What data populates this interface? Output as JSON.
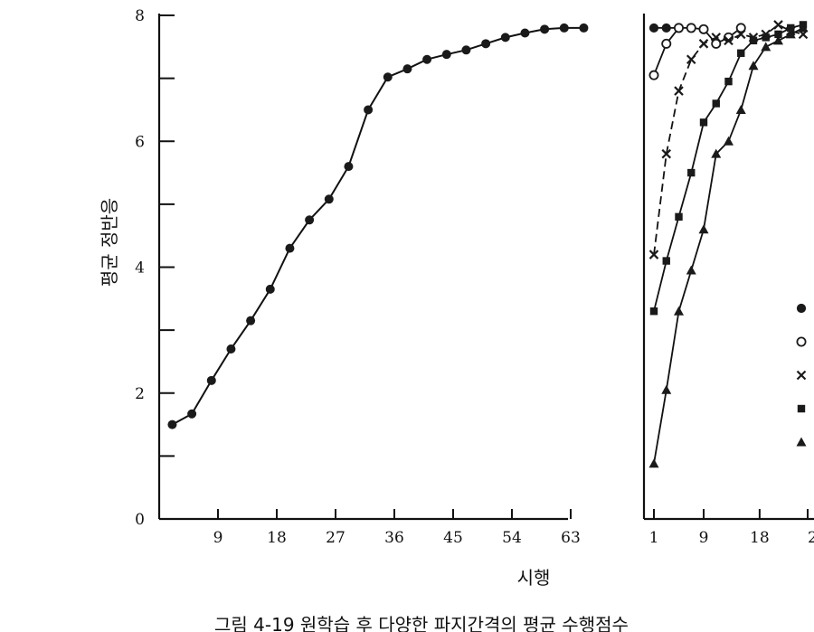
{
  "chart_data": [
    {
      "type": "line",
      "ylabel": "평균 정반응",
      "xlabel": "시행",
      "xticks": [
        9,
        18,
        27,
        36,
        45,
        54,
        63
      ],
      "yticks": [
        0,
        2,
        4,
        6,
        8
      ],
      "xlim": [
        0,
        63
      ],
      "ylim": [
        0,
        8
      ],
      "series": [
        {
          "x": [
            2,
            5,
            8,
            11,
            14,
            17,
            20,
            23,
            26,
            29,
            32,
            35,
            38,
            41,
            44,
            47,
            50,
            53,
            56,
            59,
            62,
            65
          ],
          "values": [
            1.5,
            1.67,
            2.2,
            2.7,
            3.15,
            3.65,
            4.3,
            4.75,
            5.08,
            5.6,
            6.5,
            7.02,
            7.15,
            7.3,
            7.38,
            7.45,
            7.55,
            7.65,
            7.72,
            7.78,
            7.8,
            7.8
          ]
        }
      ]
    },
    {
      "type": "line",
      "xticks": [
        1,
        9,
        18
      ],
      "partial_tick": "2",
      "xlim": [
        0,
        28
      ],
      "ylim": [
        0,
        8
      ],
      "series": [
        {
          "marker": "filled-circle",
          "x": [
            1,
            3,
            5
          ],
          "values": [
            7.8,
            7.8,
            7.8
          ]
        },
        {
          "marker": "open-circle",
          "x": [
            1,
            3,
            5,
            7,
            9,
            11,
            13,
            15
          ],
          "values": [
            7.05,
            7.55,
            7.8,
            7.8,
            7.78,
            7.55,
            7.65,
            7.8
          ]
        },
        {
          "marker": "cross",
          "x": [
            1,
            3,
            5,
            7,
            9,
            11,
            13,
            15,
            17,
            19,
            21,
            23,
            25
          ],
          "values": [
            4.2,
            5.8,
            6.8,
            7.3,
            7.55,
            7.65,
            7.6,
            7.7,
            7.65,
            7.7,
            7.85,
            7.75,
            7.7
          ]
        },
        {
          "marker": "filled-square",
          "x": [
            1,
            3,
            5,
            7,
            9,
            11,
            13,
            15,
            17,
            19,
            21,
            23,
            25
          ],
          "values": [
            3.3,
            4.1,
            4.8,
            5.5,
            6.3,
            6.6,
            6.95,
            7.4,
            7.6,
            7.65,
            7.7,
            7.8,
            7.85
          ]
        },
        {
          "marker": "filled-triangle",
          "x": [
            1,
            3,
            5,
            7,
            9,
            11,
            13,
            15,
            17,
            19,
            21,
            23,
            25
          ],
          "values": [
            0.88,
            2.05,
            3.3,
            3.95,
            4.6,
            5.8,
            6.0,
            6.5,
            7.2,
            7.5,
            7.6,
            7.7,
            7.8
          ]
        }
      ],
      "legend": {
        "placement": "right",
        "markers": [
          "filled-circle",
          "open-circle",
          "cross",
          "filled-square",
          "filled-triangle"
        ]
      }
    }
  ],
  "caption": "그림 4-19 원학습 후 다양한 파지간격의 평균 수행점수"
}
